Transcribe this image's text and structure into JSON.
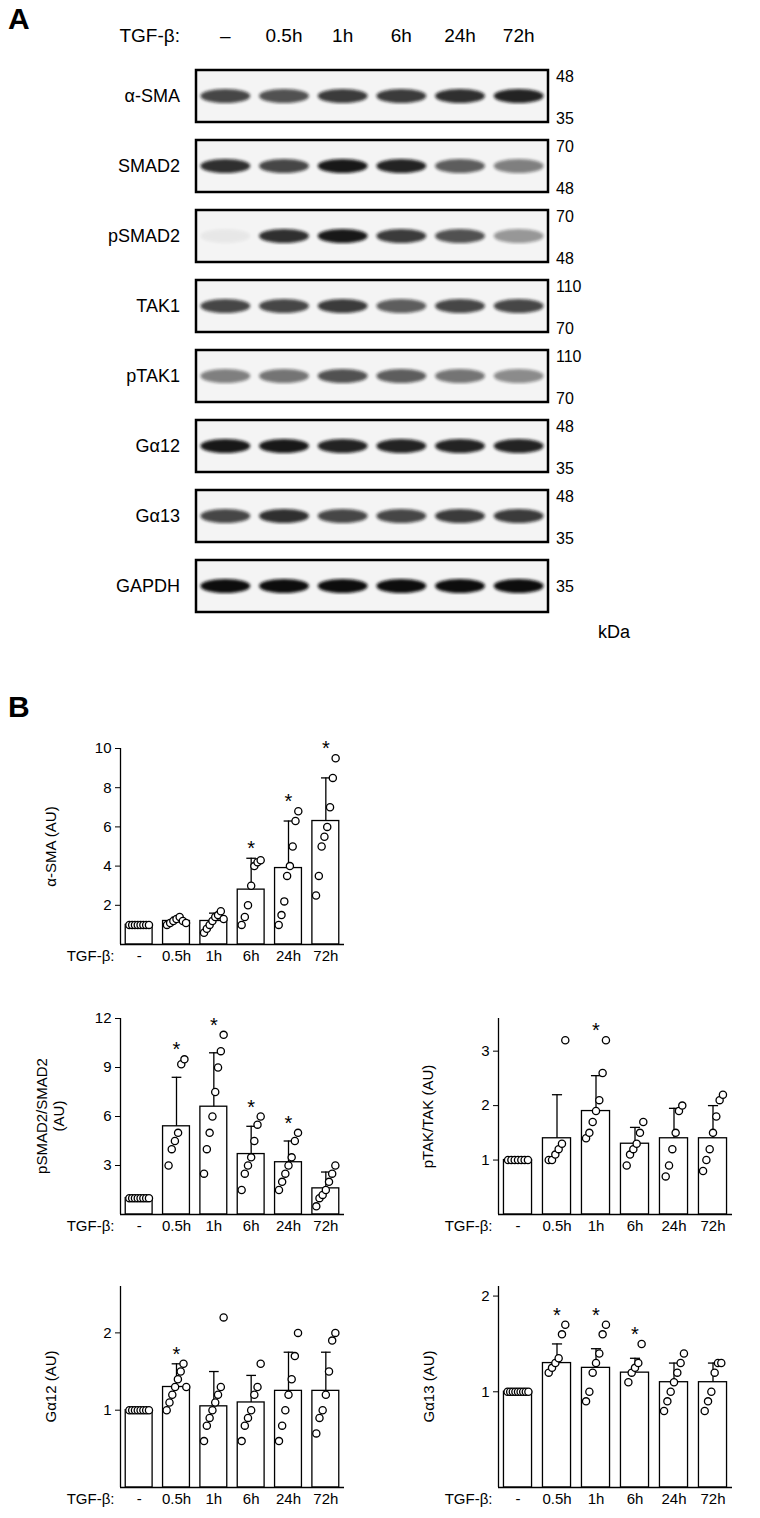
{
  "panel_labels": [
    "A",
    "B"
  ],
  "blot": {
    "treatment_label": "TGF-β:",
    "lanes": [
      "–",
      "0.5h",
      "1h",
      "6h",
      "24h",
      "72h"
    ],
    "unit": "kDa",
    "rows": [
      {
        "label": "α-SMA",
        "markers": [
          48,
          35
        ],
        "intensity": [
          0.75,
          0.7,
          0.8,
          0.8,
          0.85,
          0.9
        ]
      },
      {
        "label": "SMAD2",
        "markers": [
          70,
          48
        ],
        "intensity": [
          0.85,
          0.75,
          0.95,
          0.9,
          0.65,
          0.5
        ]
      },
      {
        "label": "pSMAD2",
        "markers": [
          70,
          48
        ],
        "intensity": [
          0.05,
          0.85,
          0.95,
          0.8,
          0.7,
          0.4
        ]
      },
      {
        "label": "TAK1",
        "markers": [
          110,
          70
        ],
        "intensity": [
          0.75,
          0.75,
          0.8,
          0.65,
          0.75,
          0.75
        ]
      },
      {
        "label": "pTAK1",
        "markers": [
          110,
          70
        ],
        "intensity": [
          0.5,
          0.55,
          0.7,
          0.65,
          0.55,
          0.45
        ]
      },
      {
        "label": "Gα12",
        "markers": [
          48,
          35
        ],
        "intensity": [
          0.95,
          0.95,
          0.9,
          0.9,
          0.9,
          0.9
        ]
      },
      {
        "label": "Gα13",
        "markers": [
          48,
          35
        ],
        "intensity": [
          0.75,
          0.85,
          0.75,
          0.75,
          0.8,
          0.8
        ]
      },
      {
        "label": "GAPDH",
        "markers": [
          35
        ],
        "intensity": [
          1,
          1,
          1,
          1,
          1,
          1
        ]
      }
    ]
  },
  "chart_data": [
    {
      "type": "bar",
      "ylabel": "α-SMA (AU)",
      "xlabel": "TGF-β:",
      "categories": [
        "-",
        "0.5h",
        "1h",
        "6h",
        "24h",
        "72h"
      ],
      "values": [
        1,
        1.2,
        1.2,
        2.8,
        3.9,
        6.3
      ],
      "errors": [
        0,
        0.2,
        0.4,
        1.6,
        2.4,
        2.2
      ],
      "points": [
        [
          1,
          1,
          1,
          1,
          1,
          1,
          1,
          1
        ],
        [
          1.0,
          1.1,
          1.2,
          1.3,
          1.4,
          1.2,
          1.1
        ],
        [
          0.6,
          0.8,
          1.0,
          1.2,
          1.4,
          1.5,
          1.7,
          1.3
        ],
        [
          1.0,
          1.4,
          2.0,
          3.0,
          4.0,
          4.2,
          4.3
        ],
        [
          1.0,
          1.5,
          2.2,
          3.5,
          4.0,
          5.0,
          6.3,
          6.8
        ],
        [
          2.5,
          3.5,
          5.0,
          5.5,
          6.0,
          7.0,
          8.5,
          9.5
        ]
      ],
      "significance": [
        null,
        null,
        null,
        "*",
        "*",
        "*"
      ],
      "ylim": [
        0,
        10
      ],
      "yticks": [
        2,
        4,
        6,
        8,
        10
      ]
    },
    {
      "type": "bar",
      "ylabel": "pSMAD2/SMAD2\n(AU)",
      "xlabel": "TGF-β:",
      "categories": [
        "-",
        "0.5h",
        "1h",
        "6h",
        "24h",
        "72h"
      ],
      "values": [
        1,
        5.4,
        6.6,
        3.7,
        3.2,
        1.6
      ],
      "errors": [
        0,
        3.0,
        3.3,
        1.7,
        1.3,
        1.0
      ],
      "points": [
        [
          1,
          1,
          1,
          1,
          1,
          1,
          1,
          1
        ],
        [
          3.0,
          4.0,
          4.5,
          5.0,
          9.2,
          9.5
        ],
        [
          2.5,
          4.0,
          5.0,
          6.0,
          7.5,
          9.0,
          10.0,
          11.0
        ],
        [
          1.5,
          2.5,
          3.0,
          3.5,
          4.5,
          5.5,
          6.0
        ],
        [
          1.5,
          2.0,
          2.5,
          3.0,
          3.5,
          4.5,
          5.0
        ],
        [
          0.5,
          1.0,
          1.2,
          1.5,
          2.0,
          2.5,
          3.0
        ]
      ],
      "significance": [
        null,
        "*",
        "*",
        "*",
        "*",
        null
      ],
      "ylim": [
        0,
        12
      ],
      "yticks": [
        3,
        6,
        9,
        12
      ]
    },
    {
      "type": "bar",
      "ylabel": "pTAK/TAK (AU)",
      "xlabel": "TGF-β:",
      "categories": [
        "-",
        "0.5h",
        "1h",
        "6h",
        "24h",
        "72h"
      ],
      "values": [
        1,
        1.4,
        1.9,
        1.3,
        1.4,
        1.4
      ],
      "errors": [
        0,
        0.8,
        0.65,
        0.3,
        0.55,
        0.6
      ],
      "points": [
        [
          1,
          1,
          1,
          1,
          1,
          1,
          1
        ],
        [
          1.0,
          1.0,
          1.1,
          1.2,
          1.3,
          3.2
        ],
        [
          1.4,
          1.5,
          1.7,
          1.9,
          2.1,
          2.6,
          3.2
        ],
        [
          0.9,
          1.1,
          1.2,
          1.3,
          1.5,
          1.7
        ],
        [
          0.7,
          0.9,
          1.2,
          1.5,
          1.9,
          2.0
        ],
        [
          0.8,
          1.0,
          1.2,
          1.5,
          1.8,
          2.1,
          2.2
        ]
      ],
      "significance": [
        null,
        null,
        "*",
        null,
        null,
        null
      ],
      "ylim": [
        0,
        3.6
      ],
      "yticks": [
        1,
        2,
        3
      ]
    },
    {
      "type": "bar",
      "ylabel": "Gα12 (AU)",
      "xlabel": "TGF-β:",
      "categories": [
        "-",
        "0.5h",
        "1h",
        "6h",
        "24h",
        "72h"
      ],
      "values": [
        1,
        1.3,
        1.05,
        1.1,
        1.25,
        1.25
      ],
      "errors": [
        0,
        0.3,
        0.45,
        0.35,
        0.5,
        0.5
      ],
      "points": [
        [
          1,
          1,
          1,
          1,
          1,
          1,
          1,
          1
        ],
        [
          1.0,
          1.1,
          1.2,
          1.3,
          1.4,
          1.5,
          1.6,
          1.3
        ],
        [
          0.6,
          0.8,
          0.9,
          1.0,
          1.1,
          1.2,
          1.3,
          2.2
        ],
        [
          0.6,
          0.8,
          0.9,
          1.0,
          1.2,
          1.3,
          1.6
        ],
        [
          0.6,
          0.8,
          1.0,
          1.2,
          1.4,
          1.7,
          2.0
        ],
        [
          0.7,
          0.9,
          1.0,
          1.2,
          1.5,
          1.9,
          2.0
        ]
      ],
      "significance": [
        null,
        "*",
        null,
        null,
        null,
        null
      ],
      "ylim": [
        0,
        2.6
      ],
      "yticks": [
        1,
        2
      ]
    },
    {
      "type": "bar",
      "ylabel": "Gα13 (AU)",
      "xlabel": "TGF-β:",
      "categories": [
        "-",
        "0.5h",
        "1h",
        "6h",
        "24h",
        "72h"
      ],
      "values": [
        1,
        1.3,
        1.25,
        1.2,
        1.1,
        1.1
      ],
      "errors": [
        0,
        0.2,
        0.2,
        0.15,
        0.2,
        0.2
      ],
      "points": [
        [
          1,
          1,
          1,
          1,
          1,
          1,
          1,
          1,
          1
        ],
        [
          1.2,
          1.25,
          1.3,
          1.35,
          1.6,
          1.7
        ],
        [
          0.9,
          1.0,
          1.2,
          1.3,
          1.4,
          1.6,
          1.7
        ],
        [
          1.1,
          1.2,
          1.25,
          1.3,
          1.5
        ],
        [
          0.8,
          0.9,
          1.0,
          1.1,
          1.2,
          1.3,
          1.4
        ],
        [
          0.8,
          0.9,
          1.0,
          1.2,
          1.3,
          1.3
        ]
      ],
      "significance": [
        null,
        "*",
        "*",
        "*",
        null,
        null
      ],
      "ylim": [
        0,
        2.1
      ],
      "yticks": [
        1,
        2
      ]
    }
  ]
}
